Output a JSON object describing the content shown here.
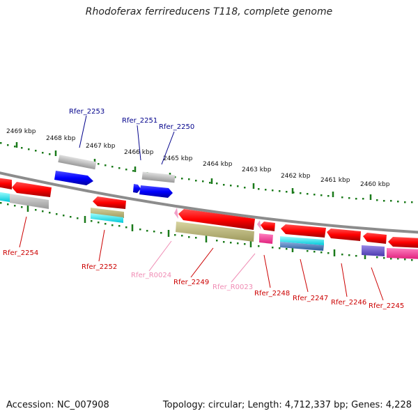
{
  "title": "Rhodoferax ferrireducens T118, complete genome",
  "footer": {
    "accession": "Accession: NC_007908",
    "stats": "Topology: circular; Length: 4,712,337 bp; Genes: 4,228"
  },
  "ruler_labels": [
    "2469 kbp",
    "2468 kbp",
    "2467 kbp",
    "2466 kbp",
    "2465 kbp",
    "2464 kbp",
    "2463 kbp",
    "2462 kbp",
    "2461 kbp",
    "2460 kbp"
  ],
  "colors": {
    "blue_label": "#00008b",
    "red_label": "#cc0000",
    "pink_label": "#f08cb4",
    "forward_cds": "#0000ff",
    "reverse_cds": "#ff0000",
    "rna": "#ff69b4",
    "backbone": "#888888",
    "ruler": "#1a7a1a",
    "cog_gray": "#b4b4b4",
    "cog_olive": "#b8b47a",
    "cog_cyan": "#00ffff",
    "cog_magenta": "#ff3ca0",
    "cog_steel": "#4a7ab8",
    "cog_slate": "#6a5acd"
  },
  "gene_labels": [
    {
      "id": "Rfer_2253",
      "color": "#00008b"
    },
    {
      "id": "Rfer_2251",
      "color": "#00008b"
    },
    {
      "id": "Rfer_2250",
      "color": "#00008b"
    },
    {
      "id": "Rfer_2254",
      "color": "#cc0000"
    },
    {
      "id": "Rfer_2252",
      "color": "#cc0000"
    },
    {
      "id": "Rfer_R0024",
      "color": "#f08cb4"
    },
    {
      "id": "Rfer_2249",
      "color": "#cc0000"
    },
    {
      "id": "Rfer_R0023",
      "color": "#f08cb4"
    },
    {
      "id": "Rfer_2248",
      "color": "#cc0000"
    },
    {
      "id": "Rfer_2247",
      "color": "#cc0000"
    },
    {
      "id": "Rfer_2246",
      "color": "#cc0000"
    },
    {
      "id": "Rfer_2245",
      "color": "#cc0000"
    }
  ]
}
